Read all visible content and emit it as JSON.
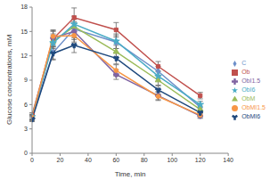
{
  "chart_data": {
    "type": "line",
    "x_label": "Time, min",
    "y_label": "Glucose concentrations, mM",
    "x": [
      0,
      15,
      30,
      60,
      90,
      120
    ],
    "xlim": [
      0,
      140
    ],
    "xticks": [
      0,
      20,
      40,
      60,
      80,
      100,
      120,
      140
    ],
    "ylim": [
      0,
      18
    ],
    "yticks": [
      0,
      3,
      6,
      9,
      12,
      15,
      18
    ],
    "grid": false,
    "legend": "right",
    "series": [
      {
        "name": "C",
        "color": "#6d8fc9",
        "marker": "diamond",
        "values": [
          4.4,
          12.4,
          15.3,
          13.7,
          10.1,
          5.7
        ],
        "errors": [
          0.3,
          0.8,
          0.9,
          0.8,
          0.6,
          0.4
        ]
      },
      {
        "name": "Ob",
        "color": "#c0504d",
        "marker": "square",
        "values": [
          4.7,
          14.1,
          16.7,
          15.2,
          10.7,
          7.1
        ],
        "errors": [
          0.3,
          1.0,
          1.2,
          0.9,
          0.6,
          0.4
        ]
      },
      {
        "name": "ObM",
        "color": "#9bbb59",
        "marker": "triangle",
        "values": [
          4.5,
          13.8,
          15.6,
          12.5,
          9.0,
          5.4
        ],
        "errors": [
          0.3,
          0.9,
          0.9,
          0.8,
          0.6,
          0.4
        ]
      },
      {
        "name": "ObI1.5",
        "color": "#8064a2",
        "marker": "cross",
        "values": [
          4.3,
          14.2,
          15.0,
          9.7,
          7.1,
          4.6
        ],
        "errors": [
          0.3,
          0.8,
          1.0,
          0.6,
          0.5,
          0.3
        ]
      },
      {
        "name": "ObI6",
        "color": "#4bacc6",
        "marker": "star",
        "values": [
          4.5,
          13.6,
          15.9,
          13.8,
          9.5,
          6.0
        ],
        "errors": [
          0.3,
          0.9,
          1.0,
          0.9,
          0.6,
          0.4
        ]
      },
      {
        "name": "ObMI1.5",
        "color": "#f79646",
        "marker": "circle",
        "values": [
          4.4,
          14.4,
          14.5,
          10.2,
          7.0,
          4.7
        ],
        "errors": [
          0.3,
          0.8,
          0.8,
          0.7,
          0.5,
          0.3
        ]
      },
      {
        "name": "ObMI6",
        "color": "#1f497d",
        "marker": "wye",
        "values": [
          4.2,
          12.3,
          13.3,
          11.7,
          7.8,
          5.0
        ],
        "errors": [
          0.3,
          0.8,
          0.9,
          0.7,
          0.5,
          0.3
        ]
      }
    ]
  }
}
